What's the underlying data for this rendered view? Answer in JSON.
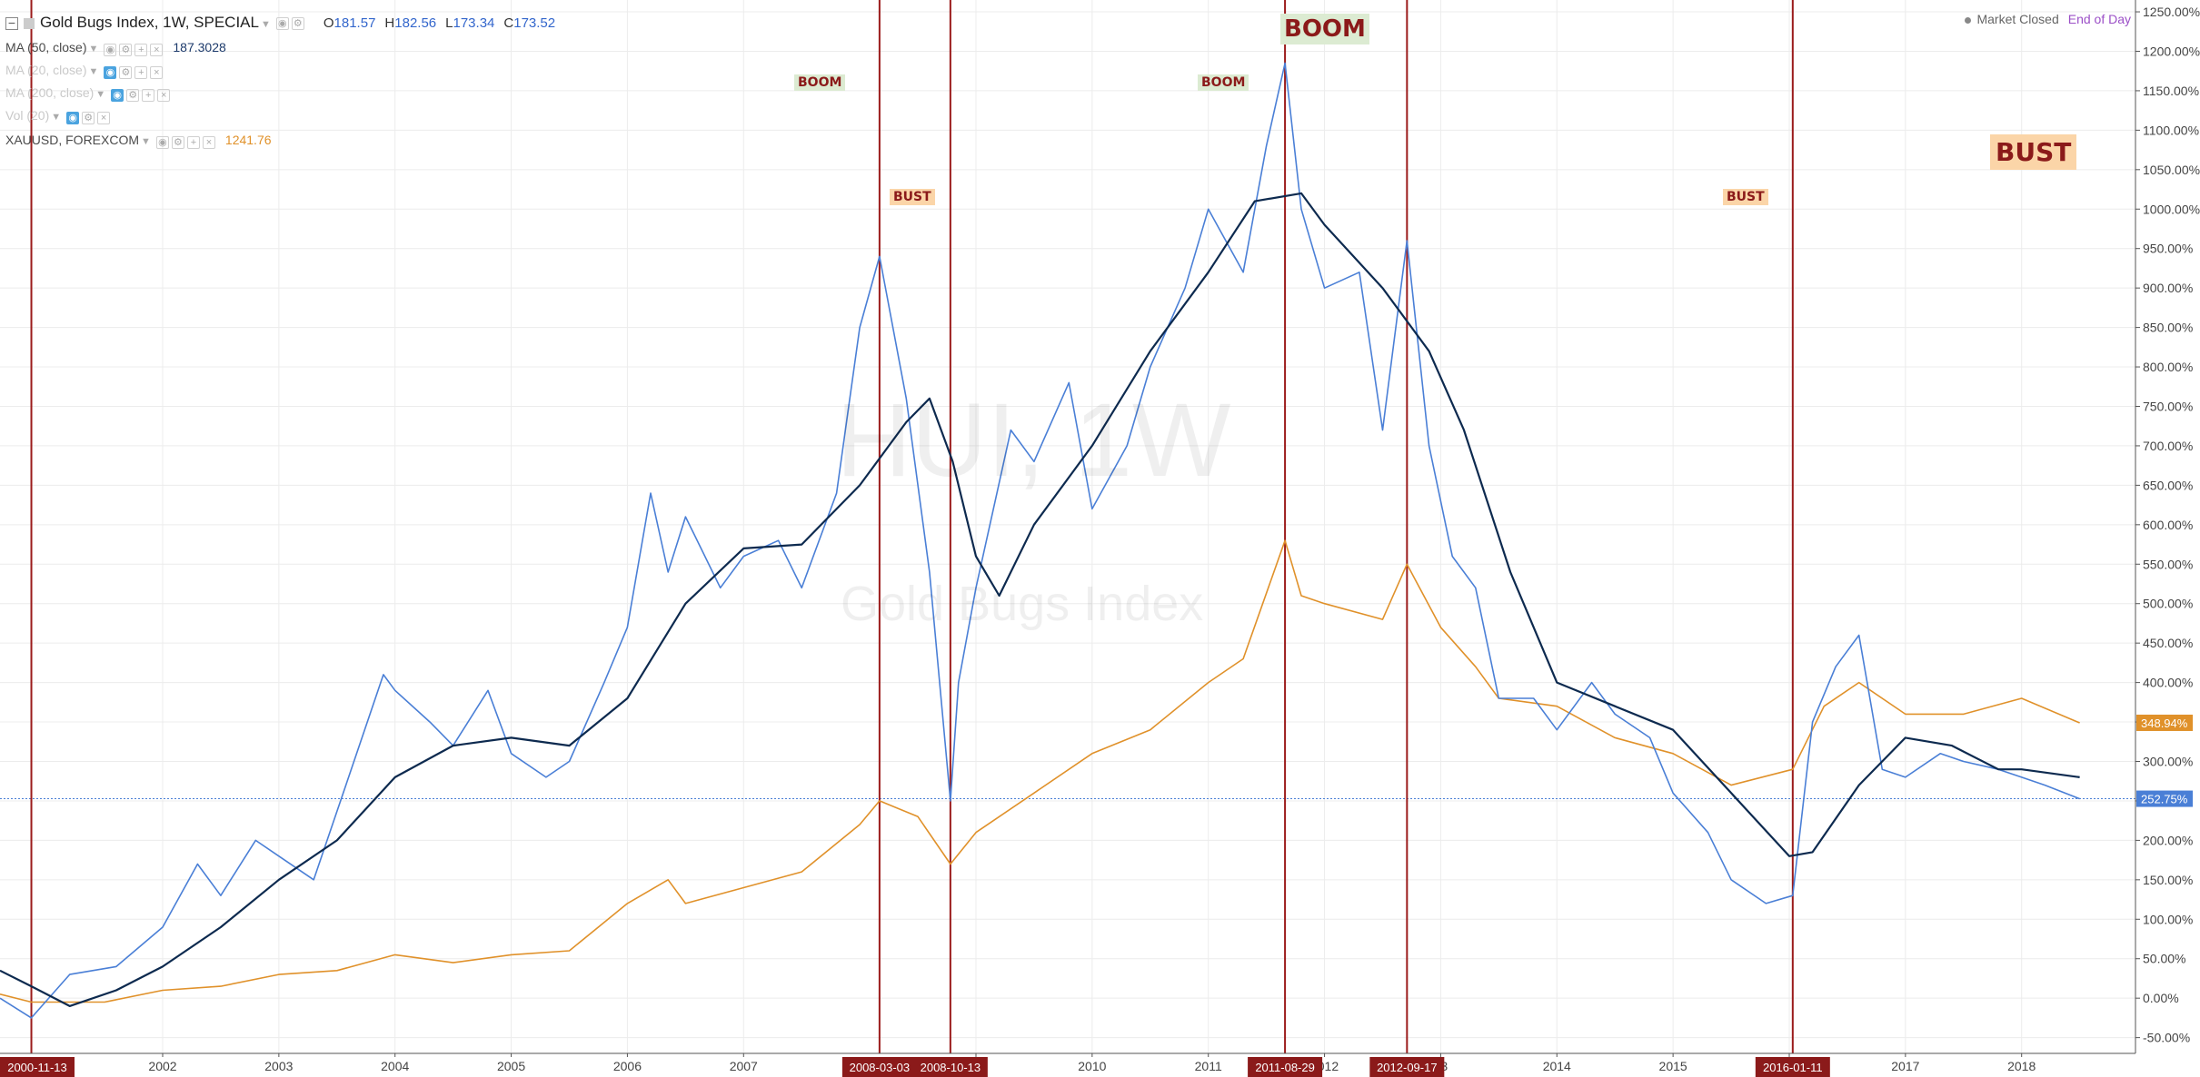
{
  "legend": {
    "title": "Gold Bugs Index, 1W, SPECIAL",
    "ohlc": {
      "o_label": "O",
      "o": "181.57",
      "h_label": "H",
      "h": "182.56",
      "l_label": "L",
      "l": "173.34",
      "c_label": "C",
      "c": "173.52"
    },
    "ma50": {
      "name": "MA (50, close)",
      "value": "187.3028"
    },
    "ma20": {
      "name": "MA (20, close)"
    },
    "ma200": {
      "name": "MA (200, close)"
    },
    "vol": {
      "name": "Vol (20)"
    },
    "xau": {
      "name": "XAUUSD, FOREXCOM",
      "value": "1241.76"
    }
  },
  "status": {
    "market": "Market Closed",
    "mode": "End of Day"
  },
  "watermark": {
    "symbol": "HUI, 1W",
    "name": "Gold Bugs Index"
  },
  "annotations": {
    "boom_small_1": "BOOM",
    "boom_small_2": "BOOM",
    "boom_big": "BOOM",
    "bust_small_1": "BUST",
    "bust_small_2": "BUST",
    "bust_big": "BUST"
  },
  "colors": {
    "hui": "#4a7fd6",
    "ma": "#0d2a4f",
    "xau": "#e0912a",
    "vline": "#9b1b1b",
    "date_tag_bg": "#8b1a1a"
  },
  "chart_data": {
    "type": "line",
    "y_axis": {
      "unit": "percent",
      "ticks": [
        -50,
        0,
        50,
        100,
        150,
        200,
        250,
        300,
        350,
        400,
        450,
        500,
        550,
        600,
        650,
        700,
        750,
        800,
        850,
        900,
        950,
        1000,
        1050,
        1100,
        1150,
        1200,
        1250
      ],
      "tick_labels": [
        "-50.00%",
        "0.00%",
        "50.00%",
        "100.00%",
        "150.00%",
        "200.00%",
        "250.00%",
        "300.00%",
        "350.00%",
        "400.00%",
        "450.00%",
        "500.00%",
        "550.00%",
        "600.00%",
        "650.00%",
        "700.00%",
        "750.00%",
        "800.00%",
        "850.00%",
        "900.00%",
        "950.00%",
        "1000.00%",
        "1050.00%",
        "1100.00%",
        "1150.00%",
        "1200.00%",
        "1250.00%"
      ],
      "range": [
        -70,
        1265
      ]
    },
    "x_axis": {
      "range": [
        2000.6,
        2018.98
      ],
      "year_ticks": [
        2002,
        2003,
        2004,
        2005,
        2006,
        2007,
        2009,
        2010,
        2011,
        2012,
        2013,
        2014,
        2015,
        2016,
        2017,
        2018
      ],
      "year_labels": [
        "2002",
        "2003",
        "2004",
        "2005",
        "2006",
        "2007",
        "9",
        "2010",
        "2011",
        "2012",
        "13",
        "2014",
        "2015",
        "2016",
        "2017",
        "2018"
      ]
    },
    "vertical_markers": [
      {
        "x": 2000.87,
        "label": "2000-11-13"
      },
      {
        "x": 2008.17,
        "label": "2008-03-03"
      },
      {
        "x": 2008.78,
        "label": "2008-10-13"
      },
      {
        "x": 2011.66,
        "label": "2011-08-29"
      },
      {
        "x": 2012.71,
        "label": "2012-09-17"
      },
      {
        "x": 2016.03,
        "label": "2016-01-11"
      }
    ],
    "last_value_labels": [
      {
        "series": "xau",
        "value": 348.94,
        "text": "348.94%"
      },
      {
        "series": "hui",
        "value": 252.75,
        "text": "252.75%"
      }
    ],
    "series": [
      {
        "key": "hui",
        "x": [
          2000.6,
          2000.87,
          2001.2,
          2001.6,
          2002.0,
          2002.3,
          2002.5,
          2002.8,
          2003.0,
          2003.3,
          2003.6,
          2003.9,
          2004.0,
          2004.3,
          2004.5,
          2004.8,
          2005.0,
          2005.3,
          2005.5,
          2005.8,
          2006.0,
          2006.2,
          2006.35,
          2006.5,
          2006.8,
          2007.0,
          2007.3,
          2007.5,
          2007.8,
          2008.0,
          2008.17,
          2008.4,
          2008.6,
          2008.78,
          2008.85,
          2009.0,
          2009.3,
          2009.5,
          2009.8,
          2010.0,
          2010.3,
          2010.5,
          2010.8,
          2011.0,
          2011.3,
          2011.5,
          2011.66,
          2011.8,
          2012.0,
          2012.3,
          2012.5,
          2012.71,
          2012.9,
          2013.1,
          2013.3,
          2013.5,
          2013.8,
          2014.0,
          2014.3,
          2014.5,
          2014.8,
          2015.0,
          2015.3,
          2015.5,
          2015.8,
          2016.03,
          2016.2,
          2016.4,
          2016.6,
          2016.8,
          2017.0,
          2017.3,
          2017.5,
          2017.8,
          2018.0,
          2018.2,
          2018.5
        ],
        "y": [
          0,
          -25,
          30,
          40,
          90,
          170,
          130,
          200,
          180,
          150,
          280,
          410,
          390,
          350,
          320,
          390,
          310,
          280,
          300,
          400,
          470,
          640,
          540,
          610,
          520,
          560,
          580,
          520,
          640,
          850,
          940,
          760,
          540,
          250,
          400,
          520,
          720,
          680,
          780,
          620,
          700,
          800,
          900,
          1000,
          920,
          1080,
          1185,
          1000,
          900,
          920,
          720,
          960,
          700,
          560,
          520,
          380,
          380,
          340,
          400,
          360,
          330,
          260,
          210,
          150,
          120,
          130,
          350,
          420,
          460,
          290,
          280,
          310,
          300,
          290,
          280,
          270,
          252.75
        ]
      },
      {
        "key": "ma",
        "x": [
          2000.6,
          2000.87,
          2001.2,
          2001.6,
          2002.0,
          2002.5,
          2003.0,
          2003.5,
          2004.0,
          2004.5,
          2005.0,
          2005.5,
          2006.0,
          2006.5,
          2007.0,
          2007.5,
          2008.0,
          2008.4,
          2008.6,
          2008.8,
          2009.0,
          2009.2,
          2009.5,
          2010.0,
          2010.5,
          2011.0,
          2011.4,
          2011.8,
          2012.0,
          2012.5,
          2012.9,
          2013.2,
          2013.6,
          2014.0,
          2014.5,
          2015.0,
          2015.5,
          2016.0,
          2016.2,
          2016.6,
          2017.0,
          2017.4,
          2017.8,
          2018.0,
          2018.5
        ],
        "y": [
          35,
          15,
          -10,
          10,
          40,
          90,
          150,
          200,
          280,
          320,
          330,
          320,
          380,
          500,
          570,
          575,
          650,
          730,
          760,
          680,
          560,
          510,
          600,
          700,
          820,
          920,
          1010,
          1020,
          980,
          900,
          820,
          720,
          540,
          400,
          370,
          340,
          260,
          180,
          185,
          270,
          330,
          320,
          290,
          290,
          280
        ]
      },
      {
        "key": "xau",
        "x": [
          2000.6,
          2000.87,
          2001.5,
          2002.0,
          2002.5,
          2003.0,
          2003.5,
          2004.0,
          2004.5,
          2005.0,
          2005.5,
          2006.0,
          2006.35,
          2006.5,
          2007.0,
          2007.5,
          2008.0,
          2008.17,
          2008.5,
          2008.78,
          2009.0,
          2009.5,
          2010.0,
          2010.5,
          2011.0,
          2011.3,
          2011.66,
          2011.8,
          2012.0,
          2012.5,
          2012.71,
          2013.0,
          2013.3,
          2013.5,
          2014.0,
          2014.5,
          2015.0,
          2015.5,
          2016.03,
          2016.3,
          2016.6,
          2017.0,
          2017.5,
          2018.0,
          2018.5
        ],
        "y": [
          5,
          -5,
          -5,
          10,
          15,
          30,
          35,
          55,
          45,
          55,
          60,
          120,
          150,
          120,
          140,
          160,
          220,
          250,
          230,
          170,
          210,
          260,
          310,
          340,
          400,
          430,
          580,
          510,
          500,
          480,
          550,
          470,
          420,
          380,
          370,
          330,
          310,
          270,
          290,
          370,
          400,
          360,
          360,
          380,
          348.94
        ]
      }
    ]
  }
}
